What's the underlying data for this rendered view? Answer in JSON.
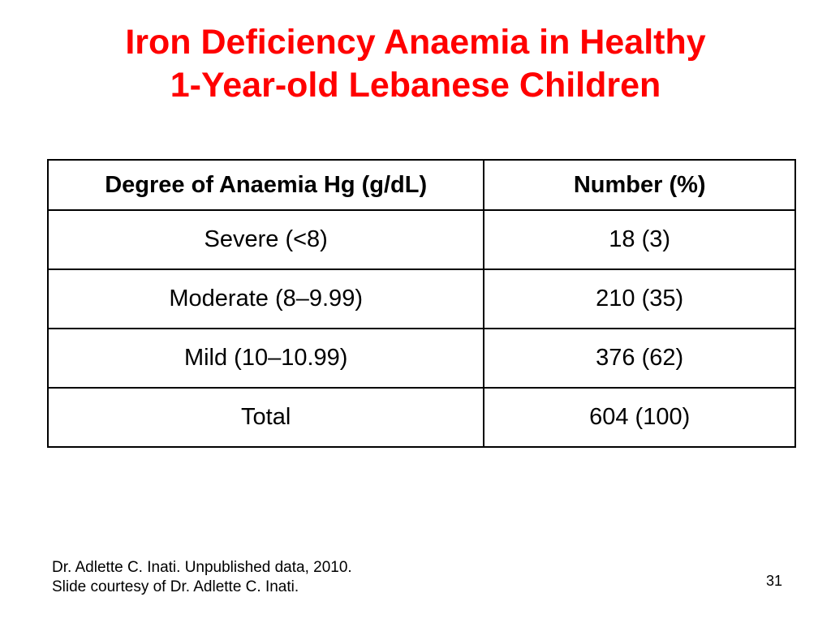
{
  "slide": {
    "title_line1": "Iron Deficiency Anaemia in Healthy",
    "title_line2": "1-Year-old Lebanese Children",
    "table": {
      "headers": [
        "Degree of Anaemia Hg (g/dL)",
        "Number (%)"
      ],
      "rows": [
        [
          "Severe (<8)",
          "18 (3)"
        ],
        [
          "Moderate (8–9.99)",
          "210 (35)"
        ],
        [
          "Mild (10–10.99)",
          "376 (62)"
        ],
        [
          "Total",
          "604 (100)"
        ]
      ]
    },
    "source_line1": "Dr. Adlette C. Inati. Unpublished data, 2010.",
    "source_line2": "Slide courtesy of Dr. Adlette C. Inati.",
    "page_number": "31",
    "title_color": "#ff0000"
  }
}
